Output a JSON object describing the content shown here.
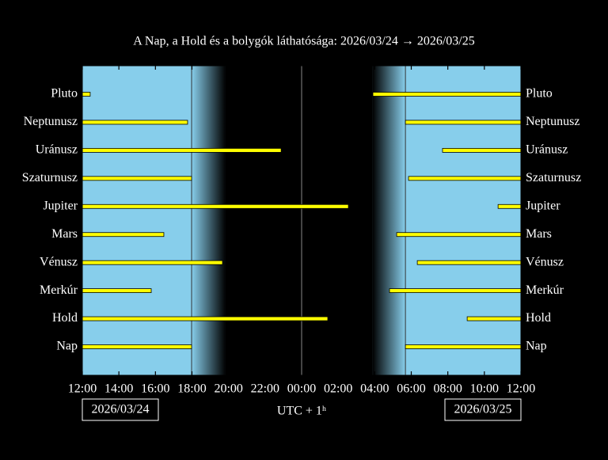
{
  "chart_data": {
    "type": "visibility",
    "title": "A Nap, a Hold és a bolygók láthatósága: 2026/03/24 → 2026/03/25",
    "x_label": "UTC + 1ʰ",
    "start_date": "2026/03/24",
    "end_date": "2026/03/25",
    "xlim": [
      0,
      24
    ],
    "xticks": [
      {
        "value": 0,
        "label": "12:00"
      },
      {
        "value": 2,
        "label": "14:00"
      },
      {
        "value": 4,
        "label": "16:00"
      },
      {
        "value": 6,
        "label": "18:00"
      },
      {
        "value": 8,
        "label": "20:00"
      },
      {
        "value": 10,
        "label": "22:00"
      },
      {
        "value": 12,
        "label": "00:00"
      },
      {
        "value": 14,
        "label": "02:00"
      },
      {
        "value": 16,
        "label": "04:00"
      },
      {
        "value": 18,
        "label": "06:00"
      },
      {
        "value": 20,
        "label": "08:00"
      },
      {
        "value": 22,
        "label": "10:00"
      },
      {
        "value": 24,
        "label": "12:00"
      }
    ],
    "twilight": {
      "sunset": 5.98,
      "night_start": 7.84,
      "night_end": 15.88,
      "sunrise": 17.68
    },
    "day_color": "#87ceeb",
    "night_color": "#000000",
    "bar_color": "#ffff00",
    "rows": [
      {
        "label": "Pluto",
        "intervals": [
          [
            0,
            0.43
          ],
          [
            15.9,
            24
          ]
        ]
      },
      {
        "label": "Neptunusz",
        "intervals": [
          [
            0,
            5.76
          ],
          [
            17.68,
            24
          ]
        ]
      },
      {
        "label": "Uránusz",
        "intervals": [
          [
            0,
            10.88
          ],
          [
            19.71,
            24
          ]
        ]
      },
      {
        "label": "Szaturnusz",
        "intervals": [
          [
            0,
            5.98
          ],
          [
            17.85,
            24
          ]
        ]
      },
      {
        "label": "Jupiter",
        "intervals": [
          [
            0,
            14.56
          ],
          [
            22.75,
            24
          ]
        ]
      },
      {
        "label": "Mars",
        "intervals": [
          [
            0,
            4.46
          ],
          [
            17.2,
            24
          ]
        ]
      },
      {
        "label": "Vénusz",
        "intervals": [
          [
            0,
            7.67
          ],
          [
            18.33,
            24
          ]
        ]
      },
      {
        "label": "Merkúr",
        "intervals": [
          [
            0,
            3.77
          ],
          [
            16.81,
            24
          ]
        ]
      },
      {
        "label": "Hold",
        "intervals": [
          [
            0,
            13.43
          ],
          [
            21.06,
            24
          ]
        ]
      },
      {
        "label": "Nap",
        "intervals": [
          [
            0,
            5.98
          ],
          [
            17.68,
            24
          ]
        ]
      }
    ]
  }
}
